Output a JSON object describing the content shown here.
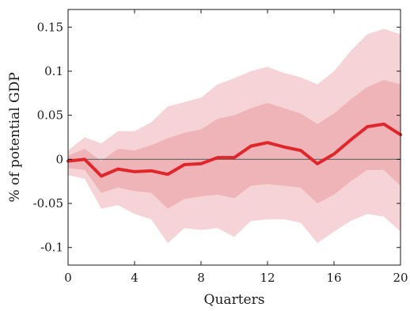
{
  "chart_data": {
    "type": "line",
    "title": "",
    "xlabel": "Quarters",
    "ylabel": "% of potential GDP",
    "xlim": [
      0,
      20
    ],
    "ylim": [
      -0.12,
      0.17
    ],
    "x_ticks": [
      0,
      4,
      8,
      12,
      16,
      20
    ],
    "x_tick_labels": [
      "0",
      "4",
      "8",
      "12",
      "16",
      "20"
    ],
    "y_ticks": [
      -0.1,
      -0.05,
      0,
      0.05,
      0.1,
      0.15
    ],
    "y_tick_labels": [
      "-0.1",
      "-0.05",
      "0",
      "0.05",
      "0.1",
      "0.15"
    ],
    "grid": false,
    "zero_line": true,
    "x": [
      0,
      1,
      2,
      3,
      4,
      5,
      6,
      7,
      8,
      9,
      10,
      11,
      12,
      13,
      14,
      15,
      16,
      17,
      18,
      19,
      20
    ],
    "series": [
      {
        "role": "median",
        "values": [
          -0.002,
          0.0,
          -0.019,
          -0.011,
          -0.014,
          -0.013,
          -0.017,
          -0.006,
          -0.005,
          0.002,
          0.002,
          0.015,
          0.019,
          0.014,
          0.01,
          -0.005,
          0.006,
          0.022,
          0.037,
          0.04,
          0.028
        ]
      }
    ],
    "bands": [
      {
        "role": "outer",
        "lower": [
          -0.018,
          -0.022,
          -0.056,
          -0.052,
          -0.062,
          -0.068,
          -0.095,
          -0.078,
          -0.08,
          -0.078,
          -0.088,
          -0.07,
          -0.068,
          -0.068,
          -0.072,
          -0.095,
          -0.082,
          -0.07,
          -0.062,
          -0.065,
          -0.082
        ],
        "upper": [
          0.01,
          0.025,
          0.018,
          0.032,
          0.032,
          0.042,
          0.06,
          0.065,
          0.07,
          0.085,
          0.092,
          0.1,
          0.105,
          0.098,
          0.093,
          0.085,
          0.1,
          0.123,
          0.142,
          0.148,
          0.142
        ]
      },
      {
        "role": "inner",
        "lower": [
          -0.01,
          -0.012,
          -0.038,
          -0.032,
          -0.036,
          -0.038,
          -0.056,
          -0.045,
          -0.042,
          -0.04,
          -0.044,
          -0.03,
          -0.028,
          -0.03,
          -0.032,
          -0.05,
          -0.04,
          -0.025,
          -0.012,
          -0.012,
          -0.03
        ],
        "upper": [
          0.004,
          0.012,
          -0.002,
          0.012,
          0.01,
          0.016,
          0.024,
          0.03,
          0.034,
          0.046,
          0.05,
          0.058,
          0.064,
          0.058,
          0.052,
          0.04,
          0.052,
          0.068,
          0.082,
          0.09,
          0.085
        ]
      }
    ],
    "colors": {
      "outer_band": "#f5d3d6",
      "inner_band": "#efb4b8",
      "median_line": "#e0252b",
      "zero_line": "#6e6e6e",
      "axes": "#1a1a1a"
    }
  }
}
